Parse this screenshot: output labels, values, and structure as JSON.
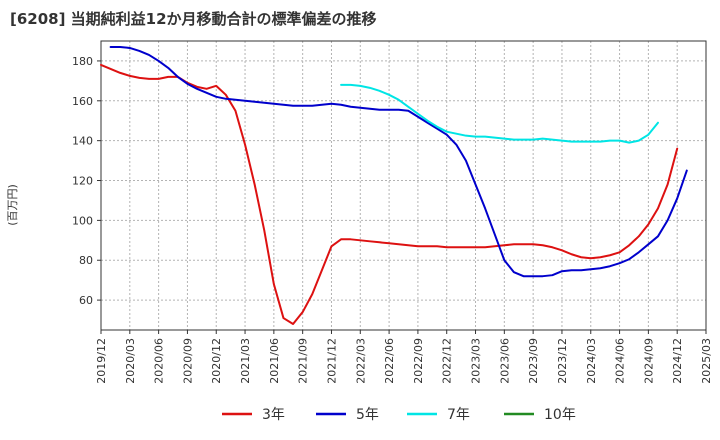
{
  "chart_data": {
    "type": "line",
    "title": "[6208]  当期純利益12か月移動合計の標準偏差の推移",
    "ylabel": "(百万円)",
    "xlabel": "",
    "ylim": [
      45,
      190
    ],
    "yticks": [
      60,
      80,
      100,
      120,
      140,
      160,
      180
    ],
    "xlim": [
      "2019-12",
      "2025-03"
    ],
    "xticks": [
      "2019/12",
      "2020/03",
      "2020/06",
      "2020/09",
      "2020/12",
      "2021/03",
      "2021/06",
      "2021/09",
      "2021/12",
      "2022/03",
      "2022/06",
      "2022/09",
      "2022/12",
      "2023/03",
      "2023/06",
      "2023/09",
      "2023/12",
      "2024/03",
      "2024/06",
      "2024/09",
      "2024/12",
      "2025/03"
    ],
    "grid": true,
    "legend_position": "bottom",
    "series": [
      {
        "name": "3年",
        "color": "#dd1111",
        "start": "2019-12",
        "values": [
          178,
          176,
          174,
          172.5,
          171.5,
          171,
          171,
          172,
          172,
          169,
          167,
          166,
          167.5,
          163,
          155,
          138,
          118,
          95,
          68,
          51,
          48,
          54,
          63,
          75,
          87,
          90.5,
          90.5,
          90,
          89.5,
          89,
          88.5,
          88,
          87.5,
          87,
          87,
          87,
          86.5,
          86.5,
          86.5,
          86.5,
          86.5,
          87,
          87.5,
          88,
          88,
          88,
          87.5,
          86.5,
          85,
          83,
          81.5,
          81,
          81.5,
          82.5,
          84,
          87.5,
          92,
          98,
          106,
          118,
          136
        ]
      },
      {
        "name": "5年",
        "color": "#0000cc",
        "start": "2020-01",
        "values": [
          187,
          187,
          186.5,
          185,
          183,
          180,
          176.5,
          172,
          168.5,
          166,
          164,
          162,
          161,
          160.5,
          160,
          159.5,
          159,
          158.5,
          158,
          157.5,
          157.5,
          157.5,
          158,
          158.5,
          158,
          157,
          156.5,
          156,
          155.5,
          155.5,
          155.5,
          155,
          152,
          149,
          146,
          143,
          138,
          130,
          118,
          106,
          93,
          80,
          74,
          72,
          72,
          72,
          72.5,
          74.5,
          75,
          75,
          75.5,
          76,
          77,
          78.5,
          80.5,
          84,
          88,
          92,
          100,
          111,
          125
        ]
      },
      {
        "name": "7年",
        "color": "#00e5e5",
        "start": "2022-01",
        "values": [
          168,
          168,
          167.5,
          166.5,
          165,
          163,
          160.5,
          157,
          153.5,
          150,
          147,
          144.5,
          143.5,
          142.5,
          142,
          142,
          141.5,
          141,
          140.5,
          140.5,
          140.5,
          141,
          140.5,
          140,
          139.5,
          139.5,
          139.5,
          139.5,
          140,
          140,
          139,
          140,
          143,
          149
        ]
      },
      {
        "name": "10年",
        "color": "#228B22",
        "start": "2024-12",
        "values": []
      }
    ]
  }
}
